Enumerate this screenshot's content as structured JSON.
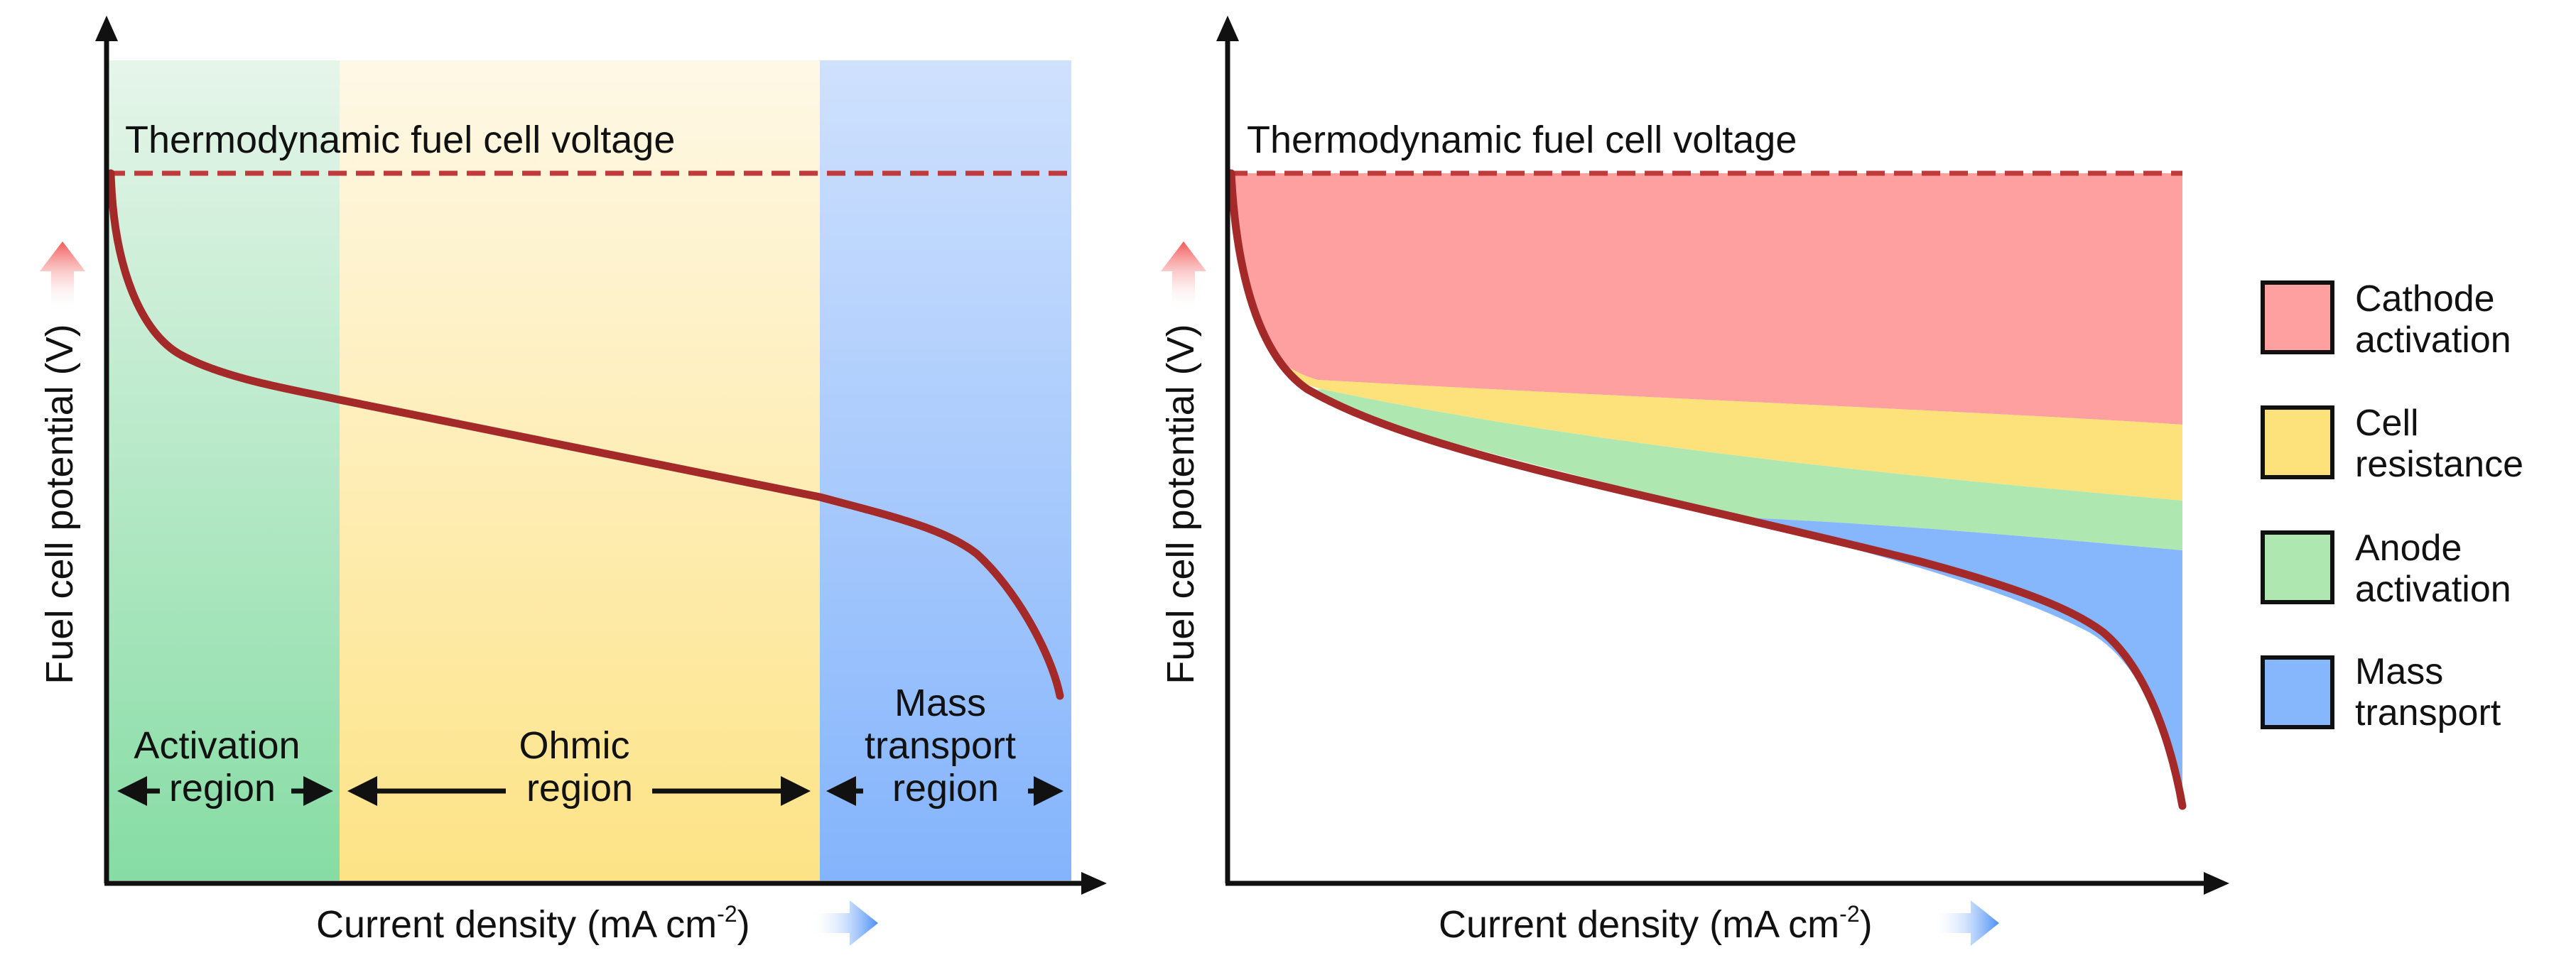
{
  "left_panel": {
    "thermo_label": "Thermodynamic fuel cell voltage",
    "ylabel": "Fuel cell potential (V)",
    "xlabel": "Current density (mA cm",
    "xlabel_sup": "-2",
    "xlabel_close": ")",
    "regions": [
      {
        "line1": "Activation",
        "line2": "region",
        "color_top": "#e6f5ea",
        "color_bottom": "#86dca4"
      },
      {
        "line1": "Ohmic",
        "line2": "region",
        "color_top": "#fef8e6",
        "color_bottom": "#fde386"
      },
      {
        "line1": "Mass",
        "line2": "transport",
        "line3": "region",
        "color_top": "#cfe1fd",
        "color_bottom": "#84b4fc"
      }
    ]
  },
  "right_panel": {
    "thermo_label": "Thermodynamic fuel cell voltage",
    "ylabel": "Fuel cell potential (V)",
    "xlabel": "Current density (mA cm",
    "xlabel_sup": "-2",
    "xlabel_close": ")"
  },
  "legend": [
    {
      "line1": "Cathode",
      "line2": "activation",
      "color": "#fea0a0"
    },
    {
      "line1": "Cell",
      "line2": "resistance",
      "color": "#fde27c"
    },
    {
      "line1": "Anode",
      "line2": "activation",
      "color": "#aee8b0"
    },
    {
      "line1": "Mass",
      "line2": "transport",
      "color": "#86b6fc"
    }
  ],
  "colors": {
    "curve": "#a42a2a",
    "thermo_line": "#c0393b",
    "axis": "#111111",
    "up_arrow": "#f25858",
    "right_arrow": "#4a8ff5"
  }
}
